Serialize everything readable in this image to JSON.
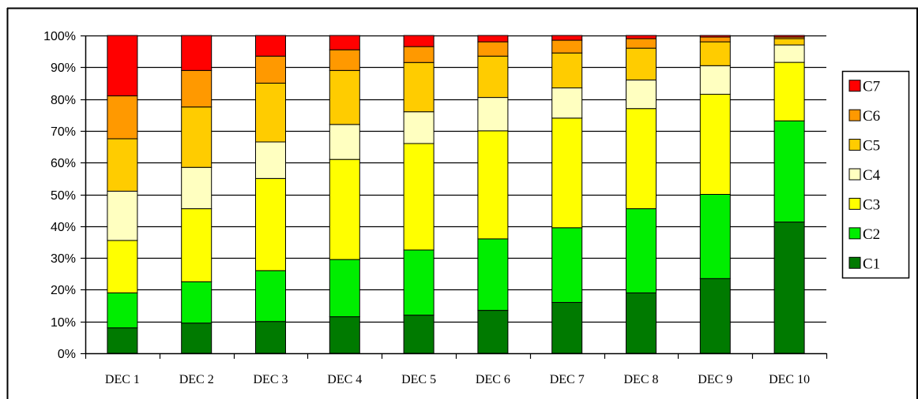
{
  "chart_data": {
    "type": "bar",
    "stacked": true,
    "percent_stacked": true,
    "title": "",
    "xlabel": "",
    "ylabel": "",
    "ylim": [
      0,
      100
    ],
    "grid": "horizontal",
    "legend_position": "right",
    "y_ticks": [
      "0%",
      "10%",
      "20%",
      "30%",
      "40%",
      "50%",
      "60%",
      "70%",
      "80%",
      "90%",
      "100%"
    ],
    "categories": [
      "DEC 1",
      "DEC 2",
      "DEC 3",
      "DEC 4",
      "DEC 5",
      "DEC 6",
      "DEC 7",
      "DEC 8",
      "DEC 9",
      "DEC 10"
    ],
    "series": [
      {
        "name": "C1",
        "color": "#007a00",
        "values": [
          8,
          9.5,
          10,
          11.5,
          12,
          13.5,
          16,
          19,
          23.5,
          41.5
        ]
      },
      {
        "name": "C2",
        "color": "#00ee00",
        "values": [
          11,
          13,
          16,
          18,
          20.5,
          22.5,
          23.5,
          26.5,
          26.5,
          32
        ]
      },
      {
        "name": "C3",
        "color": "#ffff00",
        "values": [
          16.5,
          23,
          29,
          31.5,
          33.5,
          34,
          34.5,
          31.5,
          31.5,
          18.5
        ]
      },
      {
        "name": "C4",
        "color": "#ffffc0",
        "values": [
          15.5,
          13,
          11.5,
          11,
          10,
          10.5,
          9.5,
          9,
          9,
          5.5
        ]
      },
      {
        "name": "C5",
        "color": "#ffcc00",
        "values": [
          16.5,
          19,
          18.5,
          17,
          15.5,
          13,
          11,
          10,
          7.5,
          2
        ]
      },
      {
        "name": "C6",
        "color": "#ff9900",
        "values": [
          13.5,
          11.5,
          8.5,
          6.5,
          5,
          4.5,
          4,
          3,
          1.5,
          0.5
        ]
      },
      {
        "name": "C7",
        "color": "#ff0000",
        "values": [
          19,
          11,
          6.5,
          4.5,
          3.5,
          2,
          1.5,
          1,
          0.5,
          0.5
        ]
      }
    ]
  }
}
